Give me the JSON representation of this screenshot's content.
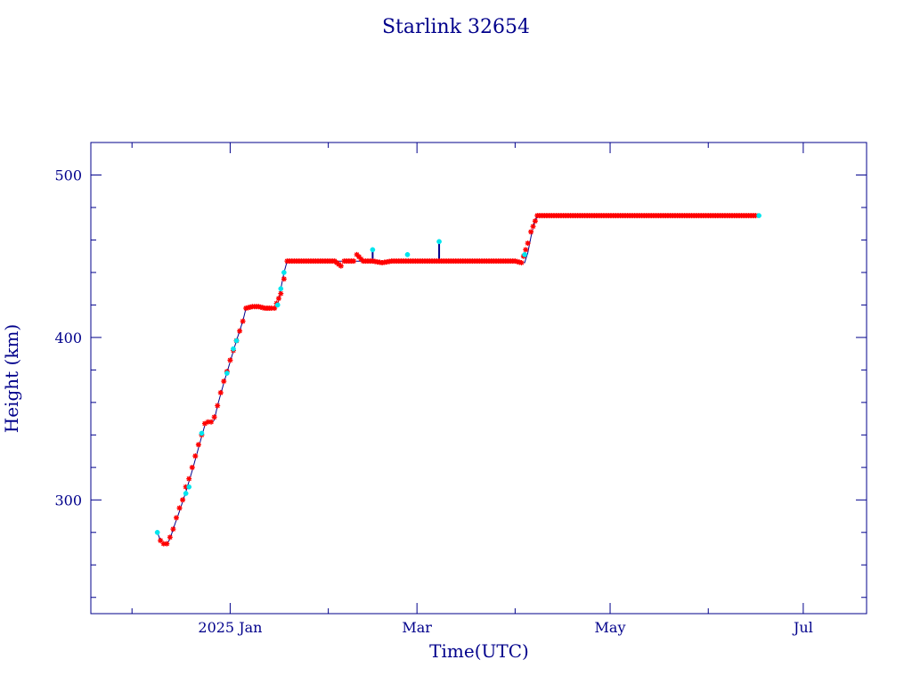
{
  "chart_data": {
    "type": "scatter",
    "title": "Starlink 32654",
    "xlabel": "Time(UTC)",
    "ylabel": "Height (km)",
    "x_unit": "date",
    "xlim": [
      "2024-11-18",
      "2025-07-21"
    ],
    "ylim": [
      230,
      520
    ],
    "y_ticks": [
      300,
      400,
      500
    ],
    "x_ticks": [
      {
        "date": "2025-01-01",
        "label": "2025 Jan"
      },
      {
        "date": "2025-03-01",
        "label": "Mar"
      },
      {
        "date": "2025-05-01",
        "label": "May"
      },
      {
        "date": "2025-07-01",
        "label": "Jul"
      }
    ],
    "grid": false,
    "legend": "none",
    "colors": {
      "axes": "#00008b",
      "text": "#00008b",
      "line": "#00008b",
      "points": "#ff0000",
      "highlight_points": "#00e5ee"
    },
    "series": [
      {
        "style": "line",
        "values": [
          [
            "2024-12-09",
            280
          ],
          [
            "2024-12-10",
            275
          ],
          [
            "2024-12-11",
            273
          ],
          [
            "2024-12-12",
            273
          ],
          [
            "2024-12-13",
            276
          ],
          [
            "2024-12-14",
            282
          ],
          [
            "2024-12-16",
            293
          ],
          [
            "2024-12-18",
            305
          ],
          [
            "2024-12-20",
            318
          ],
          [
            "2024-12-22",
            332
          ],
          [
            "2024-12-24",
            346
          ],
          [
            "2024-12-25",
            348
          ],
          [
            "2024-12-27",
            349
          ],
          [
            "2024-12-28",
            358
          ],
          [
            "2024-12-30",
            372
          ],
          [
            "2025-01-01",
            385
          ],
          [
            "2025-01-03",
            398
          ],
          [
            "2025-01-05",
            410
          ],
          [
            "2025-01-06",
            418
          ],
          [
            "2025-01-10",
            419
          ],
          [
            "2025-01-15",
            418
          ],
          [
            "2025-01-16",
            420
          ],
          [
            "2025-01-17",
            430
          ],
          [
            "2025-01-18",
            440
          ],
          [
            "2025-01-19",
            447
          ],
          [
            "2025-02-05",
            447
          ],
          [
            "2025-02-15",
            447
          ],
          [
            "2025-02-25",
            447
          ],
          [
            "2025-03-10",
            447
          ],
          [
            "2025-03-20",
            447
          ],
          [
            "2025-04-01",
            447
          ],
          [
            "2025-04-04",
            446
          ],
          [
            "2025-04-05",
            452
          ],
          [
            "2025-04-06",
            462
          ],
          [
            "2025-04-07",
            470
          ],
          [
            "2025-04-08",
            475
          ],
          [
            "2025-05-01",
            475
          ],
          [
            "2025-05-20",
            475
          ],
          [
            "2025-06-10",
            475
          ],
          [
            "2025-06-17",
            475
          ]
        ]
      },
      {
        "style": "points",
        "values": [
          [
            "2024-12-10",
            275
          ],
          [
            "2024-12-11",
            273
          ],
          [
            "2024-12-12",
            273
          ],
          [
            "2024-12-13",
            277
          ],
          [
            "2024-12-14",
            282
          ],
          [
            "2024-12-15",
            289
          ],
          [
            "2024-12-16",
            295
          ],
          [
            "2024-12-17",
            300
          ],
          [
            "2024-12-18",
            308
          ],
          [
            "2024-12-19",
            313
          ],
          [
            "2024-12-20",
            320
          ],
          [
            "2024-12-21",
            327
          ],
          [
            "2024-12-22",
            334
          ],
          [
            "2024-12-23",
            340
          ],
          [
            "2024-12-24",
            347
          ],
          [
            "2024-12-25",
            348
          ],
          [
            "2024-12-26",
            348
          ],
          [
            "2024-12-27",
            351
          ],
          [
            "2024-12-28",
            358
          ],
          [
            "2024-12-29",
            366
          ],
          [
            "2024-12-30",
            373
          ],
          [
            "2024-12-31",
            379
          ],
          [
            "2025-01-01",
            386
          ],
          [
            "2025-01-02",
            392
          ],
          [
            "2025-01-03",
            398
          ],
          [
            "2025-01-04",
            404
          ],
          [
            "2025-01-05",
            410
          ],
          [
            "2025-01-06",
            418
          ],
          [
            "2025-01-08",
            419
          ],
          [
            "2025-01-10",
            419
          ],
          [
            "2025-01-12",
            418
          ],
          [
            "2025-01-14",
            418
          ],
          [
            "2025-01-15",
            418
          ],
          [
            "2025-01-17",
            427
          ],
          [
            "2025-01-18",
            436
          ],
          [
            "2025-01-19",
            447
          ],
          [
            "2025-01-22",
            447
          ],
          [
            "2025-01-25",
            447
          ],
          [
            "2025-01-28",
            447
          ],
          [
            "2025-01-31",
            447
          ],
          [
            "2025-02-03",
            447
          ],
          [
            "2025-02-05",
            444
          ],
          [
            "2025-02-06",
            447
          ],
          [
            "2025-02-09",
            447
          ],
          [
            "2025-02-10",
            451
          ],
          [
            "2025-02-12",
            447
          ],
          [
            "2025-02-15",
            447
          ],
          [
            "2025-02-18",
            446
          ],
          [
            "2025-02-21",
            447
          ],
          [
            "2025-02-24",
            447
          ],
          [
            "2025-02-27",
            447
          ],
          [
            "2025-03-02",
            447
          ],
          [
            "2025-03-05",
            447
          ],
          [
            "2025-03-08",
            447
          ],
          [
            "2025-03-11",
            447
          ],
          [
            "2025-03-14",
            447
          ],
          [
            "2025-03-17",
            447
          ],
          [
            "2025-03-20",
            447
          ],
          [
            "2025-03-23",
            447
          ],
          [
            "2025-03-26",
            447
          ],
          [
            "2025-03-29",
            447
          ],
          [
            "2025-04-01",
            447
          ],
          [
            "2025-04-03",
            446
          ],
          [
            "2025-04-05",
            458
          ],
          [
            "2025-04-06",
            465
          ],
          [
            "2025-04-08",
            475
          ],
          [
            "2025-04-11",
            475
          ],
          [
            "2025-04-14",
            475
          ],
          [
            "2025-04-17",
            475
          ],
          [
            "2025-04-20",
            475
          ],
          [
            "2025-04-23",
            475
          ],
          [
            "2025-04-26",
            475
          ],
          [
            "2025-04-29",
            475
          ],
          [
            "2025-05-02",
            475
          ],
          [
            "2025-05-05",
            475
          ],
          [
            "2025-05-08",
            475
          ],
          [
            "2025-05-11",
            475
          ],
          [
            "2025-05-14",
            475
          ],
          [
            "2025-05-17",
            475
          ],
          [
            "2025-05-20",
            475
          ],
          [
            "2025-05-23",
            475
          ],
          [
            "2025-05-26",
            475
          ],
          [
            "2025-05-29",
            475
          ],
          [
            "2025-06-01",
            475
          ],
          [
            "2025-06-04",
            475
          ],
          [
            "2025-06-07",
            475
          ],
          [
            "2025-06-10",
            475
          ],
          [
            "2025-06-13",
            475
          ],
          [
            "2025-06-16",
            475
          ]
        ]
      },
      {
        "style": "highlight_points",
        "values": [
          [
            "2024-12-09",
            280
          ],
          [
            "2024-12-18",
            304
          ],
          [
            "2024-12-19",
            308
          ],
          [
            "2024-12-23",
            341
          ],
          [
            "2024-12-31",
            378
          ],
          [
            "2025-01-02",
            393
          ],
          [
            "2025-01-03",
            398
          ],
          [
            "2025-01-16",
            420
          ],
          [
            "2025-01-17",
            430
          ],
          [
            "2025-01-18",
            440
          ],
          [
            "2025-02-15",
            454
          ],
          [
            "2025-02-26",
            451
          ],
          [
            "2025-03-08",
            459
          ],
          [
            "2025-04-04",
            451
          ],
          [
            "2025-06-17",
            475
          ]
        ]
      },
      {
        "style": "spikes",
        "values": [
          [
            "2025-02-15",
            454
          ],
          [
            "2025-03-08",
            459
          ]
        ]
      }
    ]
  }
}
